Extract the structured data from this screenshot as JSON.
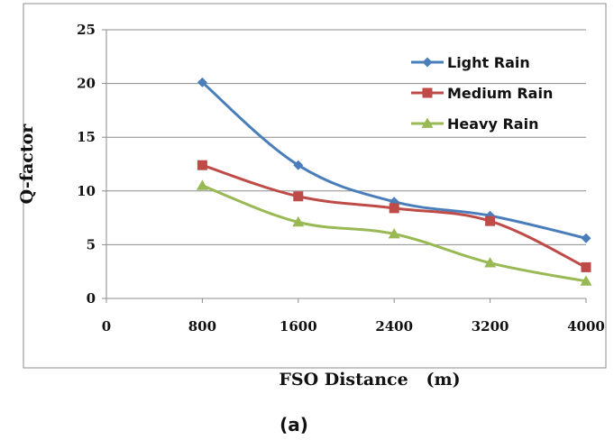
{
  "chart_data": {
    "type": "line",
    "xlabel": "FSO Distance   (m)",
    "ylabel": "Q-factor",
    "caption": "(a)",
    "x_ticks": [
      0,
      800,
      1600,
      2400,
      3200,
      4000
    ],
    "y_ticks": [
      0,
      5,
      10,
      15,
      20,
      25
    ],
    "xlim": [
      0,
      4000
    ],
    "ylim": [
      0,
      25
    ],
    "grid": "horizontal",
    "legend_position": "top-right",
    "x": [
      800,
      1600,
      2400,
      3200,
      4000
    ],
    "series": [
      {
        "name": "Light Rain",
        "color": "#4a7ebb",
        "marker": "diamond",
        "values": [
          20.1,
          12.4,
          9.0,
          7.7,
          5.6
        ]
      },
      {
        "name": "Medium Rain",
        "color": "#be4b48",
        "marker": "square",
        "values": [
          12.4,
          9.5,
          8.4,
          7.2,
          2.9
        ]
      },
      {
        "name": "Heavy Rain",
        "color": "#98b954",
        "marker": "triangle",
        "values": [
          10.5,
          7.1,
          6.0,
          3.3,
          1.6
        ]
      }
    ]
  }
}
